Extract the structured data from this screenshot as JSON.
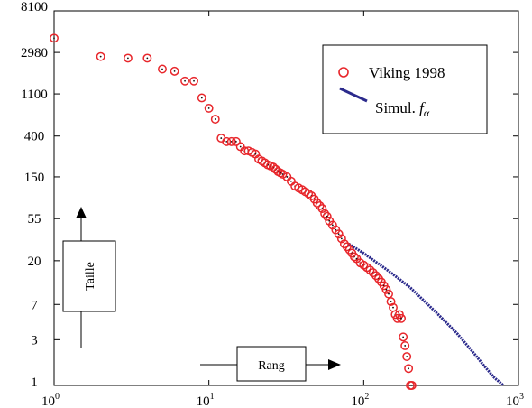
{
  "chart_data": {
    "type": "scatter",
    "title": "",
    "xlabel": "Rang",
    "ylabel": "Taille",
    "x_scale": "log",
    "y_scale": "log",
    "xlim": [
      1,
      1000
    ],
    "ylim": [
      1,
      8100
    ],
    "x_ticks": [
      {
        "value": 1,
        "base": "10",
        "exp": "0"
      },
      {
        "value": 10,
        "base": "10",
        "exp": "1"
      },
      {
        "value": 100,
        "base": "10",
        "exp": "2"
      },
      {
        "value": 1000,
        "base": "10",
        "exp": "3"
      }
    ],
    "y_ticks": [
      {
        "value": 1,
        "label": "1"
      },
      {
        "value": 3,
        "label": "3"
      },
      {
        "value": 7,
        "label": "7"
      },
      {
        "value": 20,
        "label": "20"
      },
      {
        "value": 55,
        "label": "55"
      },
      {
        "value": 150,
        "label": "150"
      },
      {
        "value": 400,
        "label": "400"
      },
      {
        "value": 1100,
        "label": "1100"
      },
      {
        "value": 2980,
        "label": "2980"
      },
      {
        "value": 8100,
        "label": "8100"
      }
    ],
    "legend_position": "top-right",
    "series": [
      {
        "name": "Viking 1998",
        "color": "#e8262b",
        "marker": "circle",
        "x": [
          1,
          2,
          3,
          4,
          5,
          6,
          7,
          8,
          9,
          10,
          11,
          12,
          13,
          14,
          15,
          16,
          17,
          18,
          19,
          20,
          21,
          22,
          23,
          24,
          25,
          26,
          27,
          28,
          29,
          30,
          32,
          34,
          36,
          38,
          40,
          42,
          44,
          46,
          48,
          50,
          52,
          54,
          56,
          58,
          60,
          63,
          66,
          69,
          72,
          75,
          78,
          81,
          84,
          87,
          90,
          95,
          100,
          105,
          110,
          115,
          120,
          125,
          130,
          135,
          140,
          145,
          150,
          155,
          160,
          165,
          170,
          175,
          180,
          185,
          190,
          195,
          200,
          205
        ],
        "y": [
          4200,
          2700,
          2600,
          2600,
          2000,
          1900,
          1500,
          1500,
          1000,
          780,
          600,
          380,
          350,
          350,
          350,
          310,
          280,
          280,
          270,
          260,
          230,
          220,
          210,
          200,
          195,
          190,
          180,
          170,
          165,
          160,
          150,
          135,
          120,
          115,
          110,
          105,
          100,
          95,
          88,
          80,
          75,
          70,
          62,
          58,
          52,
          47,
          42,
          38,
          34,
          30,
          28,
          26,
          24,
          22,
          21,
          19,
          18,
          17,
          16,
          15,
          14,
          13,
          12,
          11,
          10,
          9,
          7.5,
          6.5,
          5.5,
          5,
          5.5,
          5,
          3.2,
          2.6,
          2.0,
          1.5,
          1.0,
          1.0
        ]
      },
      {
        "name": "Simul. fα",
        "color": "#2b2a8c",
        "marker": "line",
        "x": [
          80,
          100,
          150,
          200,
          300,
          400,
          500,
          600,
          700,
          800
        ],
        "y": [
          30,
          24,
          15,
          10.5,
          5.6,
          3.5,
          2.3,
          1.6,
          1.2,
          1.0
        ]
      }
    ]
  },
  "legend": {
    "viking_label": "Viking 1998",
    "simul_label": "Simul. ",
    "simul_symbol": "f",
    "simul_sub": "α"
  },
  "annotations": {
    "x_arrow_label": "Rang",
    "y_arrow_label": "Taille"
  }
}
